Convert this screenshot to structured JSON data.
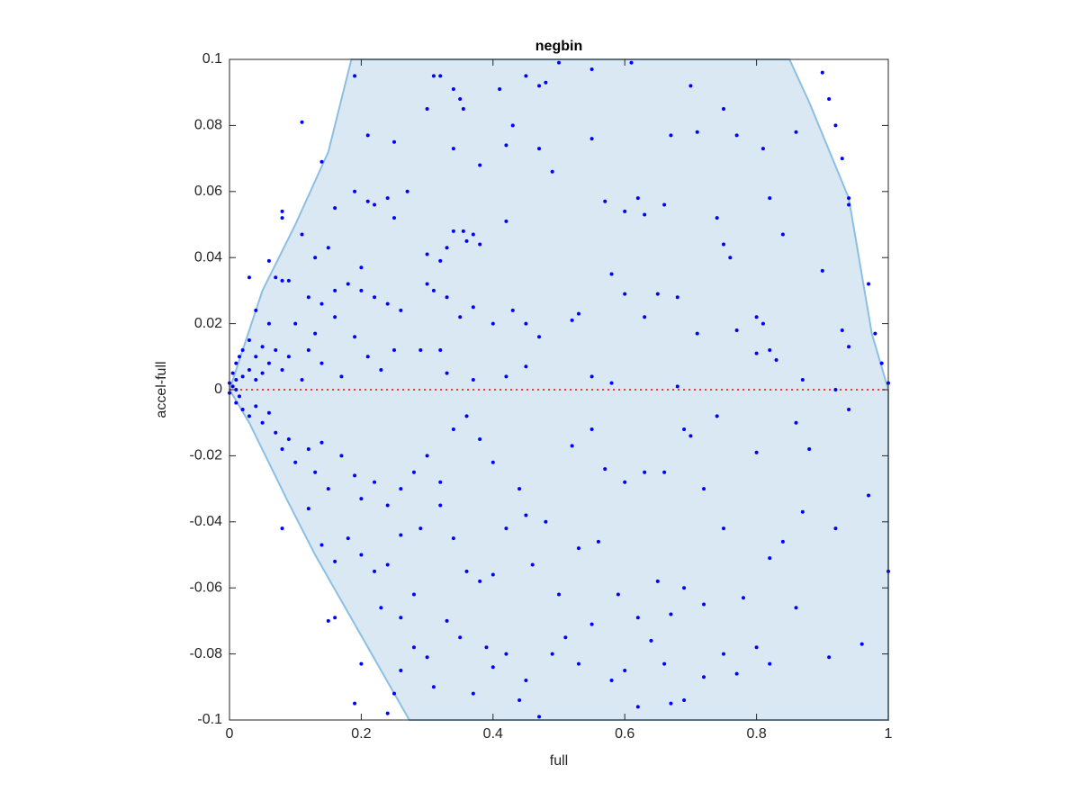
{
  "chart_data": {
    "type": "scatter",
    "title": "negbin",
    "x_label": "full",
    "y_label": "accel-full",
    "xlim": [
      0,
      1
    ],
    "ylim": [
      -0.1,
      0.1
    ],
    "xticks": [
      0,
      0.2,
      0.4,
      0.6,
      0.8,
      1
    ],
    "yticks": [
      -0.1,
      -0.08,
      -0.06,
      -0.04,
      -0.02,
      0,
      0.02,
      0.04,
      0.06,
      0.08,
      0.1
    ],
    "region": {
      "color": "#dae8f4",
      "edge_color": "#8dbfe0",
      "x": [
        0,
        0.02,
        0.05,
        0.1,
        0.15,
        0.185,
        0.85,
        0.88,
        0.94,
        0.975,
        1,
        1,
        0.273,
        0.13,
        0.089,
        0.03
      ],
      "y": [
        0,
        0.012,
        0.03,
        0.05,
        0.072,
        0.1,
        0.1,
        0.087,
        0.058,
        0.017,
        0,
        -0.1,
        -0.1,
        -0.05,
        -0.034,
        -0.01
      ]
    },
    "reference_line": {
      "y": 0,
      "color": "#ff0000"
    },
    "series": [
      {
        "color": "#0000ff",
        "x": [
          0.19,
          0.11,
          0.3,
          0.31,
          0.32,
          0.34,
          0.35,
          0.355,
          0.41,
          0.45,
          0.47,
          0.48,
          0.5,
          0.55,
          0.61,
          0.7,
          0.75,
          0.9,
          0.91,
          0.92,
          0.93,
          0.94,
          0.94,
          0.86,
          0.81,
          0.77,
          0.71,
          0.67,
          0.55,
          0.47,
          0.43,
          0.42,
          0.38,
          0.49,
          0.34,
          0.25,
          0.21,
          0.14,
          0.27,
          0.19,
          0.21,
          0.22,
          0.24,
          0.16,
          0.08,
          0.08,
          0.11,
          0.25,
          0.42,
          0.57,
          0.6,
          0.62,
          0.63,
          0.66,
          0.74,
          0.82,
          0.84,
          0.75,
          0.76,
          0.9,
          0.34,
          0.355,
          0.36,
          0.37,
          0.33,
          0.38,
          0.32,
          0.06,
          0.13,
          0.15,
          0.2,
          0.58,
          0.3,
          0.07,
          0.08,
          0.09,
          0.12,
          0.14,
          0.16,
          0.18,
          0.2,
          0.22,
          0.24,
          0.26,
          0.3,
          0.31,
          0.33,
          0.35,
          0.37,
          0.4,
          0.43,
          0.45,
          0.47,
          0.52,
          0.53,
          0.6,
          0.63,
          0.65,
          0.68,
          0.71,
          0.77,
          0.8,
          0.81,
          0.82,
          0.93,
          0.94,
          0.97,
          0.98,
          0.03,
          0.04,
          0.06,
          0.1,
          0.13,
          0.16,
          0.19,
          0.21,
          0.23,
          0.25,
          0.29,
          0.32,
          0.33,
          0.37,
          0.42,
          0.45,
          0.55,
          0.58,
          0.68,
          0.8,
          0.83,
          0.87,
          0.99,
          0.0,
          0.005,
          0.01,
          0.015,
          0.02,
          0.03,
          0.04,
          0.05,
          0.06,
          0.07,
          0.08,
          0.09,
          0.11,
          0.12,
          0.14,
          0.17,
          0.01,
          0.02,
          0.03,
          0.04,
          0.05,
          0.01,
          0.0,
          0.005,
          0.015,
          0.92,
          1.0,
          0.01,
          0.02,
          0.03,
          0.04,
          0.05,
          0.06,
          0.07,
          0.08,
          0.09,
          0.1,
          0.12,
          0.13,
          0.14,
          0.15,
          0.17,
          0.19,
          0.2,
          0.22,
          0.24,
          0.26,
          0.28,
          0.3,
          0.32,
          0.34,
          0.36,
          0.38,
          0.4,
          0.44,
          0.45,
          0.48,
          0.52,
          0.55,
          0.57,
          0.6,
          0.63,
          0.66,
          0.69,
          0.7,
          0.72,
          0.74,
          0.8,
          0.86,
          0.88,
          0.94,
          0.97,
          0.08,
          0.12,
          0.14,
          0.16,
          0.18,
          0.2,
          0.22,
          0.24,
          0.26,
          0.29,
          0.32,
          0.34,
          0.36,
          0.38,
          0.4,
          0.42,
          0.46,
          0.5,
          0.53,
          0.56,
          0.59,
          0.62,
          0.65,
          0.67,
          0.69,
          0.72,
          0.75,
          0.78,
          0.82,
          0.84,
          0.87,
          0.92,
          1.0,
          0.15,
          0.16,
          0.2,
          0.19,
          0.24,
          0.25,
          0.23,
          0.26,
          0.28,
          0.3,
          0.31,
          0.33,
          0.35,
          0.37,
          0.39,
          0.4,
          0.42,
          0.44,
          0.45,
          0.47,
          0.49,
          0.51,
          0.53,
          0.55,
          0.58,
          0.6,
          0.62,
          0.64,
          0.66,
          0.67,
          0.69,
          0.72,
          0.75,
          0.77,
          0.8,
          0.82,
          0.86,
          0.91,
          0.96,
          0.28,
          0.26
        ],
        "values": [
          0.095,
          0.081,
          0.085,
          0.095,
          0.095,
          0.091,
          0.088,
          0.085,
          0.091,
          0.095,
          0.092,
          0.093,
          0.099,
          0.097,
          0.099,
          0.092,
          0.085,
          0.096,
          0.088,
          0.08,
          0.07,
          0.058,
          0.056,
          0.078,
          0.073,
          0.077,
          0.078,
          0.077,
          0.076,
          0.073,
          0.08,
          0.074,
          0.068,
          0.066,
          0.073,
          0.075,
          0.077,
          0.069,
          0.06,
          0.06,
          0.057,
          0.056,
          0.058,
          0.055,
          0.054,
          0.052,
          0.047,
          0.052,
          0.051,
          0.057,
          0.054,
          0.058,
          0.053,
          0.056,
          0.052,
          0.058,
          0.047,
          0.044,
          0.04,
          0.036,
          0.048,
          0.048,
          0.045,
          0.047,
          0.043,
          0.044,
          0.039,
          0.039,
          0.04,
          0.043,
          0.037,
          0.035,
          0.041,
          0.034,
          0.033,
          0.033,
          0.028,
          0.026,
          0.03,
          0.032,
          0.03,
          0.028,
          0.026,
          0.024,
          0.032,
          0.03,
          0.028,
          0.022,
          0.025,
          0.02,
          0.024,
          0.02,
          0.016,
          0.021,
          0.023,
          0.029,
          0.022,
          0.029,
          0.028,
          0.017,
          0.018,
          0.022,
          0.02,
          0.012,
          0.018,
          0.013,
          0.032,
          0.017,
          0.034,
          0.024,
          0.02,
          0.02,
          0.017,
          0.022,
          0.016,
          0.01,
          0.006,
          0.012,
          0.012,
          0.012,
          0.005,
          0.003,
          0.004,
          0.007,
          0.004,
          0.002,
          0.001,
          0.011,
          0.009,
          0.003,
          0.008,
          0.002,
          0.005,
          0.008,
          0.01,
          0.012,
          0.015,
          0.01,
          0.013,
          0.008,
          0.012,
          0.006,
          0.01,
          0.003,
          0.012,
          0.008,
          0.004,
          0.003,
          0.004,
          0.006,
          0.003,
          0.005,
          0.0,
          -0.001,
          0.001,
          -0.002,
          0.0,
          0.002,
          -0.004,
          -0.006,
          -0.008,
          -0.005,
          -0.01,
          -0.007,
          -0.013,
          -0.018,
          -0.015,
          -0.022,
          -0.018,
          -0.025,
          -0.016,
          -0.03,
          -0.02,
          -0.026,
          -0.033,
          -0.028,
          -0.035,
          -0.03,
          -0.025,
          -0.02,
          -0.028,
          -0.012,
          -0.008,
          -0.015,
          -0.022,
          -0.03,
          -0.038,
          -0.04,
          -0.017,
          -0.012,
          -0.024,
          -0.028,
          -0.025,
          -0.025,
          -0.012,
          -0.014,
          -0.03,
          -0.008,
          -0.019,
          -0.01,
          -0.018,
          -0.006,
          -0.032,
          -0.042,
          -0.036,
          -0.047,
          -0.052,
          -0.045,
          -0.05,
          -0.055,
          -0.053,
          -0.044,
          -0.042,
          -0.035,
          -0.045,
          -0.055,
          -0.058,
          -0.056,
          -0.042,
          -0.053,
          -0.062,
          -0.048,
          -0.046,
          -0.062,
          -0.069,
          -0.058,
          -0.068,
          -0.06,
          -0.065,
          -0.042,
          -0.063,
          -0.051,
          -0.046,
          -0.037,
          -0.042,
          -0.055,
          -0.07,
          -0.069,
          -0.083,
          -0.095,
          -0.098,
          -0.092,
          -0.066,
          -0.069,
          -0.078,
          -0.081,
          -0.09,
          -0.07,
          -0.075,
          -0.092,
          -0.078,
          -0.084,
          -0.08,
          -0.094,
          -0.088,
          -0.099,
          -0.08,
          -0.075,
          -0.083,
          -0.071,
          -0.088,
          -0.085,
          -0.096,
          -0.076,
          -0.083,
          -0.095,
          -0.094,
          -0.087,
          -0.08,
          -0.086,
          -0.078,
          -0.083,
          -0.066,
          -0.081,
          -0.077,
          -0.062,
          -0.085
        ]
      }
    ]
  }
}
